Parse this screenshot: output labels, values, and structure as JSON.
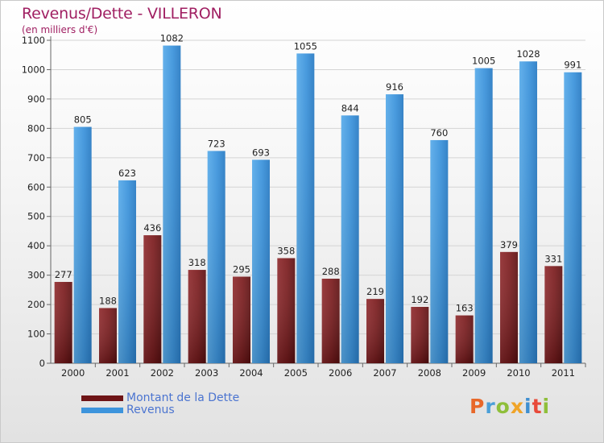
{
  "title": "Revenus/Dette - VILLERON",
  "subtitle": "(en milliers d'€)",
  "logo": "Proxiti",
  "colors": {
    "debt": "#7a1a1c",
    "revenue": "#3d94dc",
    "title": "#a01f62",
    "legend_text": "#4b74d0"
  },
  "chart_data": {
    "type": "bar",
    "categories": [
      "2000",
      "2001",
      "2002",
      "2003",
      "2004",
      "2005",
      "2006",
      "2007",
      "2008",
      "2009",
      "2010",
      "2011"
    ],
    "series": [
      {
        "name": "Montant de la Dette",
        "values": [
          277,
          188,
          436,
          318,
          295,
          358,
          288,
          219,
          192,
          163,
          379,
          331
        ]
      },
      {
        "name": "Revenus",
        "values": [
          805,
          623,
          1082,
          723,
          693,
          1055,
          844,
          916,
          760,
          1005,
          1028,
          991
        ]
      }
    ],
    "ylim": [
      0,
      1100
    ],
    "yticks": [
      0,
      100,
      200,
      300,
      400,
      500,
      600,
      700,
      800,
      900,
      1000,
      1100
    ],
    "grid": true,
    "legend_position": "bottom-left"
  }
}
